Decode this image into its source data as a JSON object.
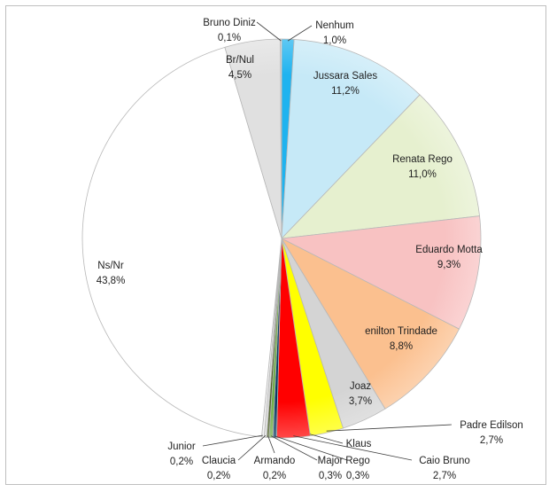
{
  "chart_data": {
    "type": "pie",
    "start_angle_deg": 0,
    "direction": "clockwise",
    "slices": [
      {
        "name": "Nenhum",
        "value": 1.0,
        "value_label": "1,0%",
        "color": "#1fb3ef"
      },
      {
        "name": "Jussara Sales",
        "value": 11.2,
        "value_label": "11,2%",
        "color": "#c6e9f7"
      },
      {
        "name": "Renata Rego",
        "value": 11.0,
        "value_label": "11,0%",
        "color": "#e6f0cf"
      },
      {
        "name": "Eduardo Motta",
        "value": 9.3,
        "value_label": "9,3%",
        "color": "#f8c2c2"
      },
      {
        "name": "enilton Trindade",
        "value": 8.8,
        "value_label": "8,8%",
        "color": "#fbc08f"
      },
      {
        "name": "Joaz",
        "value": 3.7,
        "value_label": "3,7%",
        "color": "#d4d4d4"
      },
      {
        "name": "Padre Edilson",
        "value": 2.7,
        "value_label": "2,7%",
        "color": "#ffff00"
      },
      {
        "name": "Klaus",
        "value": 0.0,
        "value_label": "",
        "color": "#ffffff"
      },
      {
        "name": "Caio Bruno",
        "value": 2.7,
        "value_label": "2,7%",
        "color": "#ff0000"
      },
      {
        "name": "Rego",
        "value": 0.3,
        "value_label": "0,3%",
        "color": "#0b3d63"
      },
      {
        "name": "Major",
        "value": 0.3,
        "value_label": "0,3%",
        "color": "#70ad47"
      },
      {
        "name": "Armando",
        "value": 0.2,
        "value_label": "0,2%",
        "color": "#4f6228"
      },
      {
        "name": "Claucia",
        "value": 0.2,
        "value_label": "0,2%",
        "color": "#e0e0e0"
      },
      {
        "name": "Junior",
        "value": 0.2,
        "value_label": "0,2%",
        "color": "#f2f2f2"
      },
      {
        "name": "Ns/Nr",
        "value": 43.8,
        "value_label": "43,8%",
        "color": "#ffffff"
      },
      {
        "name": "Br/Nul",
        "value": 4.5,
        "value_label": "4,5%",
        "color": "#e0e0e0"
      },
      {
        "name": "Bruno Diniz",
        "value": 0.1,
        "value_label": "0,1%",
        "color": "#f2f2f2"
      }
    ]
  }
}
